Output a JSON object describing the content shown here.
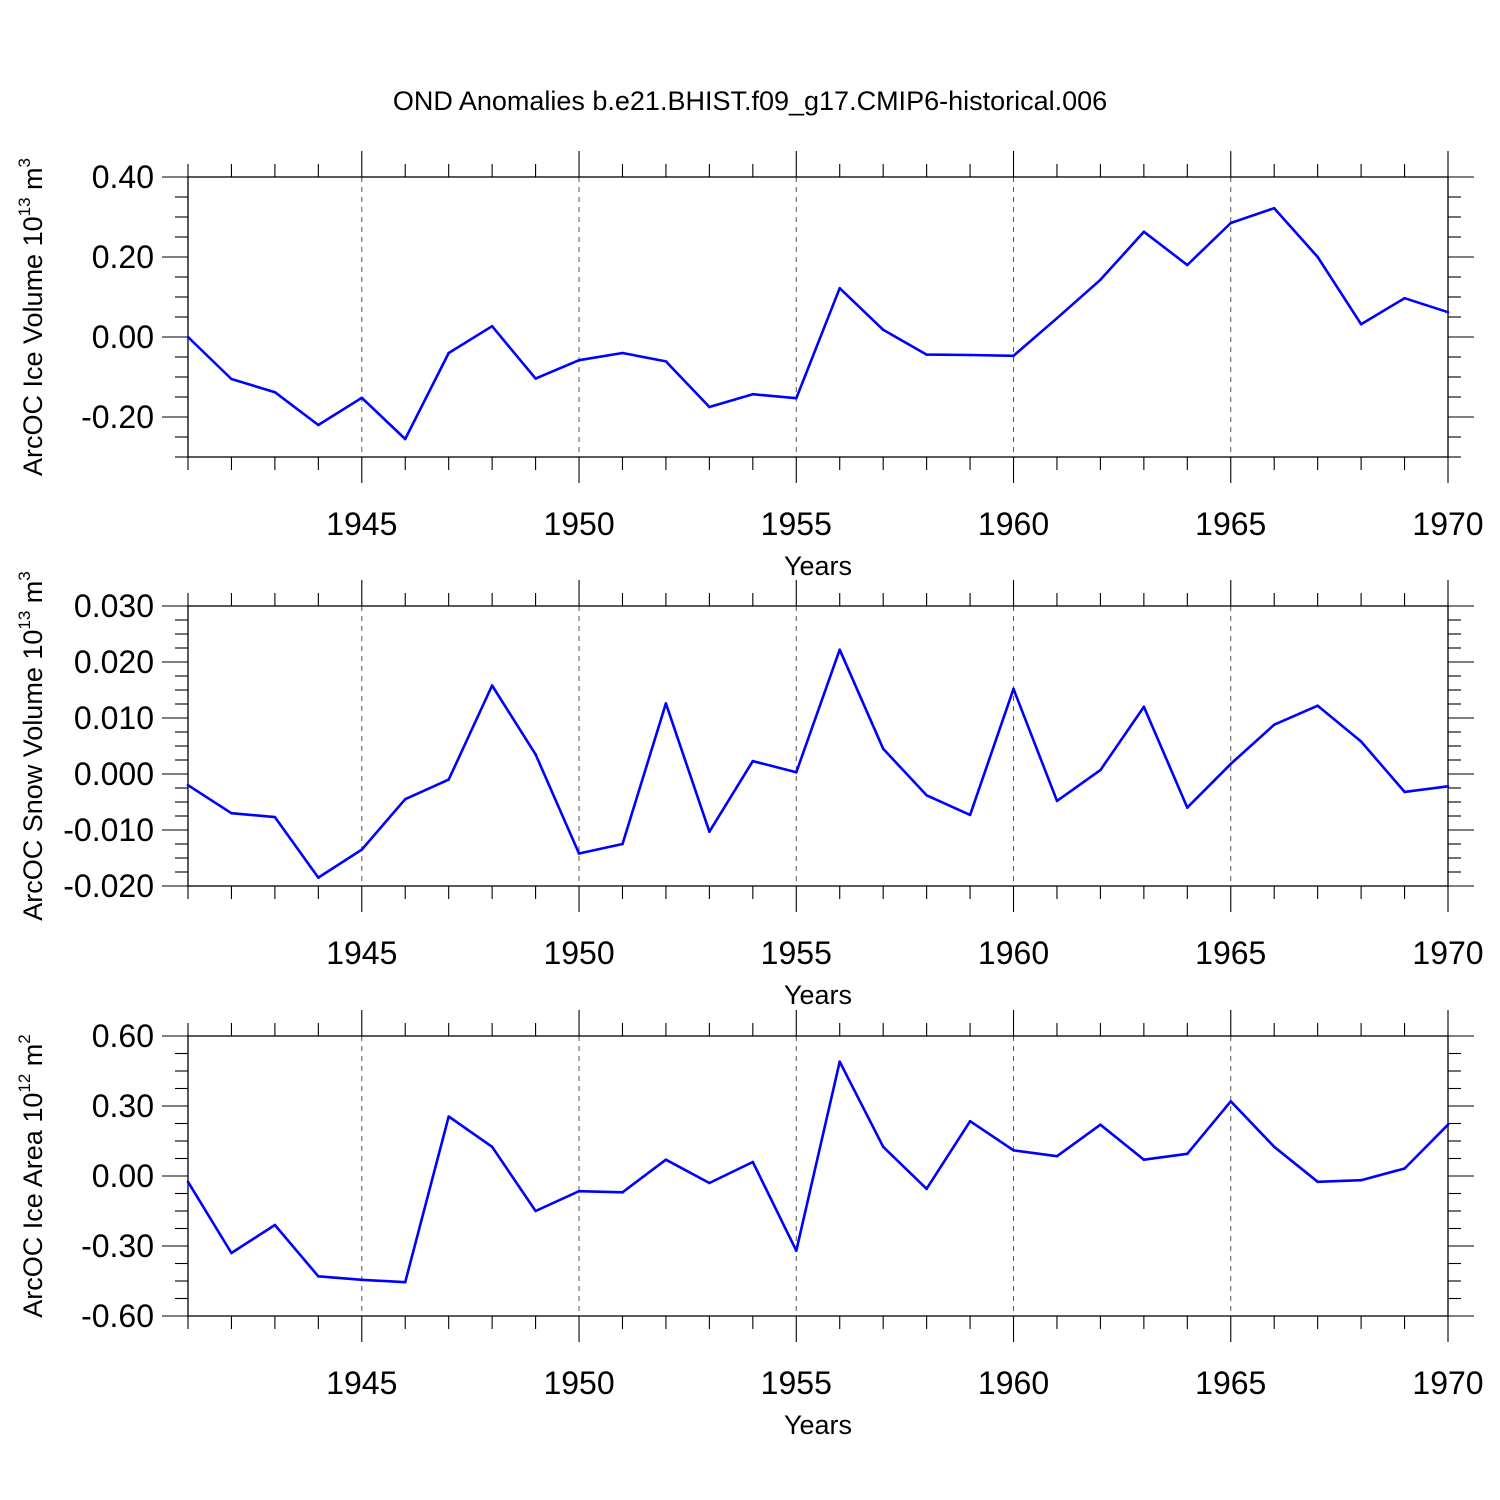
{
  "title": "OND Anomalies b.e21.BHIST.f09_g17.CMIP6-historical.006",
  "colors": {
    "line": "#0000ff",
    "axis": "#000000",
    "grid": "#555555"
  },
  "chart_data": [
    {
      "type": "line",
      "ylabel": "ArcOC Ice Volume 10",
      "ylabel_exp": "13",
      "ylabel_unit": " m",
      "ylabel_unit_exp": "3",
      "xlabel": "Years",
      "xlim": [
        1941,
        1970
      ],
      "ylim": [
        -0.3,
        0.4
      ],
      "yticks": [
        0.4,
        0.2,
        0.0,
        -0.2
      ],
      "yticklabels": [
        "0.40",
        "0.20",
        "0.00",
        "-0.20"
      ],
      "xticks": [
        1945,
        1950,
        1955,
        1960,
        1965,
        1970
      ],
      "xticklabels": [
        "1945",
        "1950",
        "1955",
        "1960",
        "1965",
        "1970"
      ],
      "grid": "vertical dashed at labeled years",
      "x": [
        1941,
        1942,
        1943,
        1944,
        1945,
        1946,
        1947,
        1948,
        1949,
        1950,
        1951,
        1952,
        1953,
        1954,
        1955,
        1956,
        1957,
        1958,
        1959,
        1960,
        1961,
        1962,
        1963,
        1964,
        1965,
        1966,
        1967,
        1968,
        1969,
        1970
      ],
      "values": [
        0.0,
        -0.105,
        -0.138,
        -0.22,
        -0.152,
        -0.255,
        -0.04,
        0.027,
        -0.104,
        -0.058,
        -0.04,
        -0.061,
        -0.175,
        -0.143,
        -0.153,
        0.122,
        0.018,
        -0.044,
        -0.045,
        -0.047,
        0.047,
        0.143,
        0.263,
        0.18,
        0.285,
        0.322,
        0.2,
        0.032,
        0.097,
        0.062
      ]
    },
    {
      "type": "line",
      "ylabel": "ArcOC Snow Volume 10",
      "ylabel_exp": "13",
      "ylabel_unit": " m",
      "ylabel_unit_exp": "3",
      "xlabel": "Years",
      "xlim": [
        1941,
        1970
      ],
      "ylim": [
        -0.02,
        0.03
      ],
      "yticks": [
        0.03,
        0.02,
        0.01,
        0.0,
        -0.01,
        -0.02
      ],
      "yticklabels": [
        "0.030",
        "0.020",
        "0.010",
        "0.000",
        "-0.010",
        "-0.020"
      ],
      "xticks": [
        1945,
        1950,
        1955,
        1960,
        1965,
        1970
      ],
      "xticklabels": [
        "1945",
        "1950",
        "1955",
        "1960",
        "1965",
        "1970"
      ],
      "grid": "vertical dashed at labeled years",
      "x": [
        1941,
        1942,
        1943,
        1944,
        1945,
        1946,
        1947,
        1948,
        1949,
        1950,
        1951,
        1952,
        1953,
        1954,
        1955,
        1956,
        1957,
        1958,
        1959,
        1960,
        1961,
        1962,
        1963,
        1964,
        1965,
        1966,
        1967,
        1968,
        1969,
        1970
      ],
      "values": [
        -0.002,
        -0.007,
        -0.0077,
        -0.0185,
        -0.0135,
        -0.0045,
        -0.001,
        0.0158,
        0.0035,
        -0.0142,
        -0.0125,
        0.0126,
        -0.0103,
        0.0023,
        0.0003,
        0.0222,
        0.0045,
        -0.0038,
        -0.0073,
        0.0152,
        -0.0048,
        0.0007,
        0.012,
        -0.006,
        0.0018,
        0.0088,
        0.0122,
        0.0058,
        -0.0032,
        -0.0022
      ]
    },
    {
      "type": "line",
      "ylabel": "ArcOC Ice Area 10",
      "ylabel_exp": "12",
      "ylabel_unit": " m",
      "ylabel_unit_exp": "2",
      "xlabel": "Years",
      "xlim": [
        1941,
        1970
      ],
      "ylim": [
        -0.6,
        0.6
      ],
      "yticks": [
        0.6,
        0.3,
        0.0,
        -0.3,
        -0.6
      ],
      "yticklabels": [
        "0.60",
        "0.30",
        "0.00",
        "-0.30",
        "-0.60"
      ],
      "xticks": [
        1945,
        1950,
        1955,
        1960,
        1965,
        1970
      ],
      "xticklabels": [
        "1945",
        "1950",
        "1955",
        "1960",
        "1965",
        "1970"
      ],
      "grid": "vertical dashed at labeled years",
      "x": [
        1941,
        1942,
        1943,
        1944,
        1945,
        1946,
        1947,
        1948,
        1949,
        1950,
        1951,
        1952,
        1953,
        1954,
        1955,
        1956,
        1957,
        1958,
        1959,
        1960,
        1961,
        1962,
        1963,
        1964,
        1965,
        1966,
        1967,
        1968,
        1969,
        1970
      ],
      "values": [
        -0.025,
        -0.33,
        -0.21,
        -0.43,
        -0.445,
        -0.455,
        0.255,
        0.125,
        -0.15,
        -0.065,
        -0.07,
        0.07,
        -0.03,
        0.06,
        -0.32,
        0.49,
        0.125,
        -0.055,
        0.235,
        0.11,
        0.085,
        0.22,
        0.07,
        0.095,
        0.32,
        0.125,
        -0.025,
        -0.018,
        0.032,
        0.22
      ]
    }
  ]
}
